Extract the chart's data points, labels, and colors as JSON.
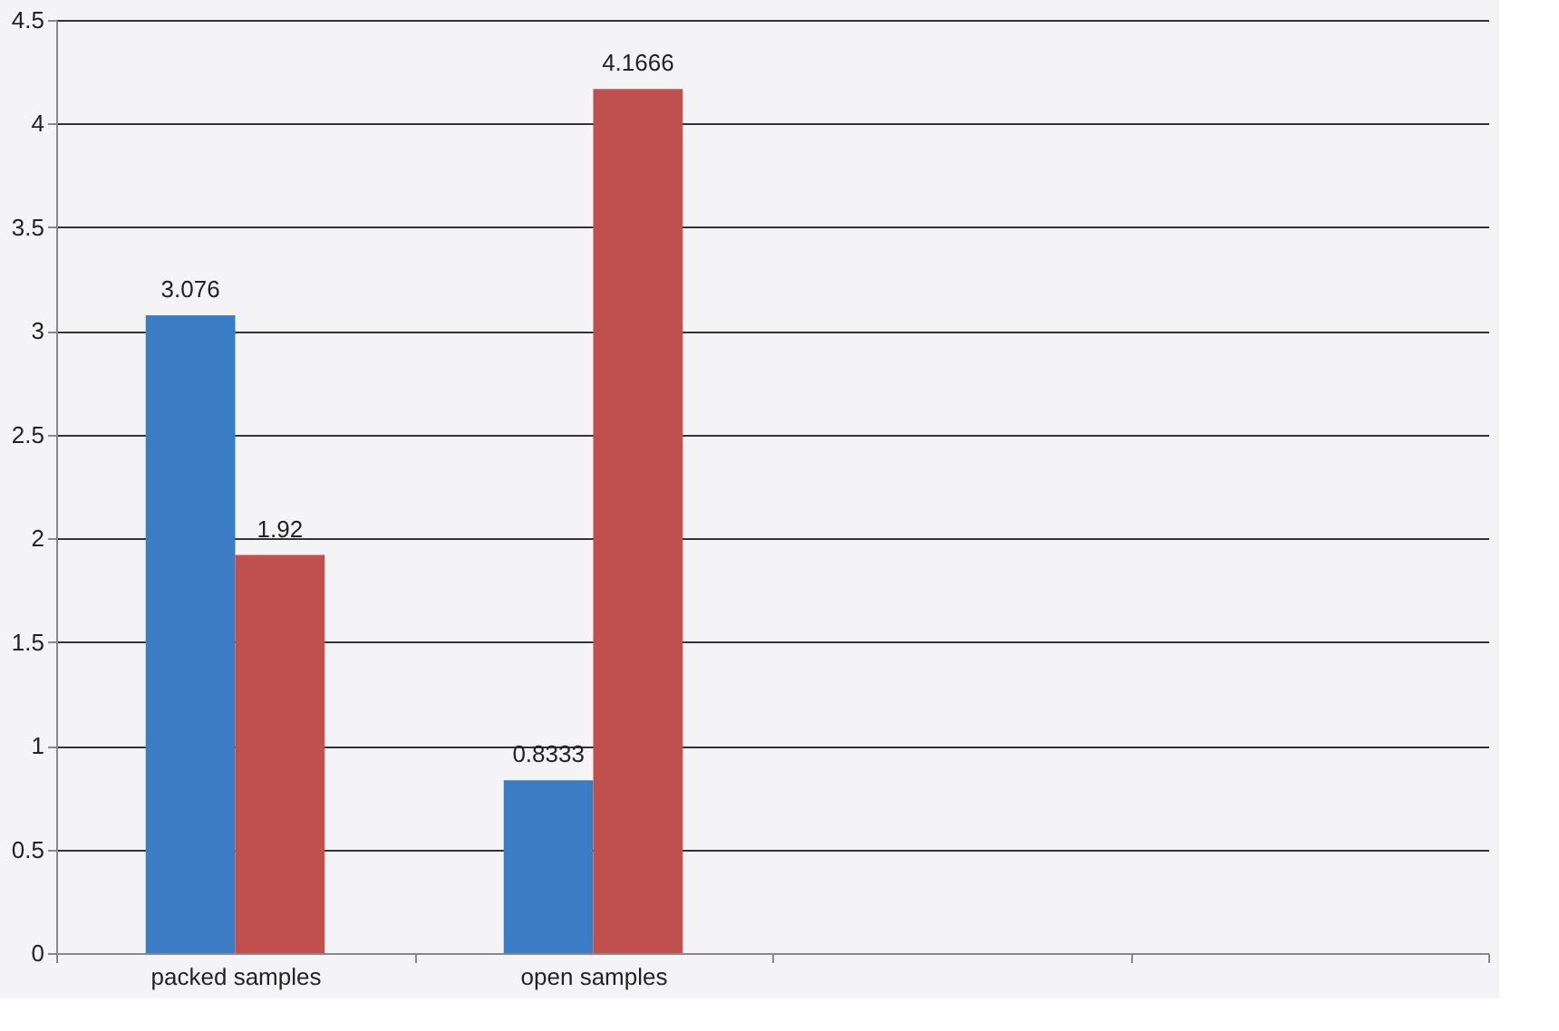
{
  "chart_data": {
    "type": "bar",
    "categories": [
      "packed samples",
      "open samples",
      null,
      null
    ],
    "series": [
      {
        "color": "#3b7dc4",
        "values": [
          3.076,
          0.8333,
          null,
          null
        ]
      },
      {
        "color": "#c0504d",
        "values": [
          1.92,
          4.1666,
          null,
          null
        ]
      }
    ],
    "ylim": [
      0,
      4.5
    ],
    "yticks": [
      0,
      0.5,
      1,
      1.5,
      2,
      2.5,
      3,
      3.5,
      4,
      4.5
    ],
    "grid": "y",
    "data_labels": true,
    "legend": false
  }
}
